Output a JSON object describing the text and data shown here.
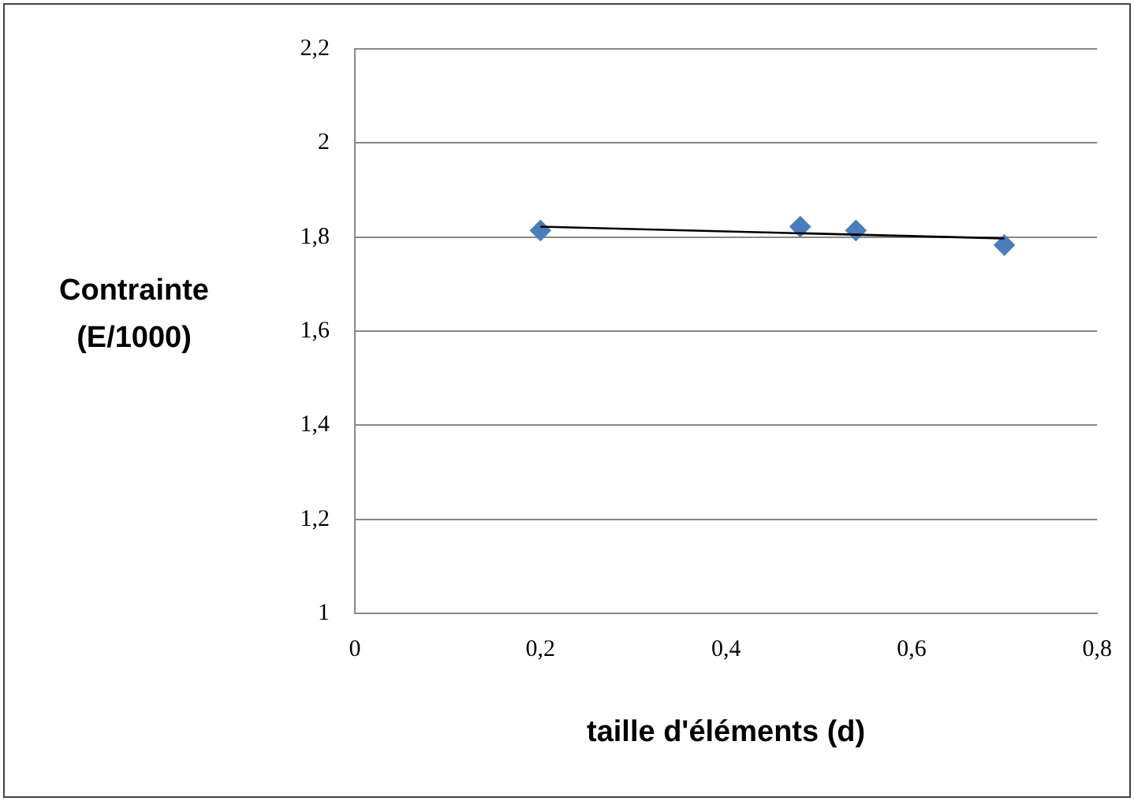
{
  "chart_data": {
    "type": "scatter",
    "xlabel": "taille d'éléments (d)",
    "ylabel": "Contrainte\n(E/1000)",
    "xlim": [
      0,
      0.8
    ],
    "xticks": [
      0,
      {
        "value": 0.2,
        "label": "0,2"
      },
      {
        "value": 0.4,
        "label": "0,4"
      },
      {
        "value": 0.6,
        "label": "0,6"
      },
      {
        "value": 0.8,
        "label": "0,8"
      }
    ],
    "ylim": [
      1,
      2.2
    ],
    "yticks": [
      1,
      {
        "value": 1.2,
        "label": "1,2"
      },
      {
        "value": 1.4,
        "label": "1,4"
      },
      {
        "value": 1.6,
        "label": "1,6"
      },
      {
        "value": 1.8,
        "label": "1,8"
      },
      2,
      {
        "value": 2.2,
        "label": "2,2"
      }
    ],
    "grid": "y",
    "legend": false,
    "marker": "diamond",
    "series": [
      {
        "type": "scatter",
        "color": "#4a7ebb",
        "x": [
          0.2,
          0.48,
          0.54,
          0.7
        ],
        "values": [
          1.814,
          1.822,
          1.814,
          1.783
        ]
      },
      {
        "type": "line",
        "color": "#000000",
        "x": [
          0.2,
          0.7
        ],
        "values": [
          1.822,
          1.797
        ],
        "marker": "none",
        "line_style": "solid"
      }
    ]
  }
}
